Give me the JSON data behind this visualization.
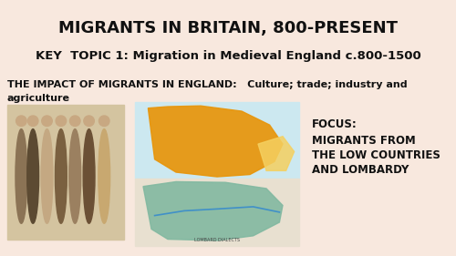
{
  "background_color": "#f8e8de",
  "title": "MIGRANTS IN BRITAIN, 800-PRESENT",
  "title_fontsize": 13,
  "title_color": "#111111",
  "subtitle": "KEY  TOPIC 1: Migration in Medieval England c.800-1500",
  "subtitle_fontsize": 9.5,
  "subtitle_color": "#111111",
  "impact_text_line1": "THE IMPACT OF MIGRANTS IN ENGLAND:   Culture; trade; industry and",
  "impact_text_line2": "agriculture",
  "impact_fontsize": 8.0,
  "impact_color": "#111111",
  "focus_label": "FOCUS:",
  "focus_line1": "MIGRANTS FROM",
  "focus_line2": "THE LOW COUNTRIES",
  "focus_line3": "AND LOMBARDY",
  "focus_fontsize": 8.5,
  "focus_color": "#111111"
}
